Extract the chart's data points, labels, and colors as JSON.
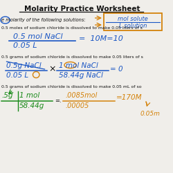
{
  "title": "Molarity Practice Worksheet",
  "bg_color": "#f0eeea",
  "title_color": "#1a1a1a",
  "blue": "#1a56c4",
  "orange": "#d4820a",
  "green": "#1a8a1a",
  "black": "#111111",
  "formula_num": "mol solute",
  "formula_den": "L solution",
  "intro_text": "e molarity of the following solutions:",
  "p1_line": "0.5 moles of sodium chloride is dissolved to make 0.05 liters of s",
  "p1_num": "0.5 mol NaCl",
  "p1_den": "0.05 L",
  "p1_ans": "=  10M=10",
  "p2_line": "0.5 grams of sodium chloride is dissolved to make 0.05 liters of s",
  "p2_num1": "0.5g NaCl",
  "p2_den1": "0.05 L",
  "p2_num2": "1 mol NaCl",
  "p2_den2": "58.44g NaCl",
  "p2_ans": "= 0",
  "p3_line": "0.5 grams of sodium chloride is dissolved to make 0.05 mL of so",
  "p3_lnum1": ".5g",
  "p3_lnum2": "1 mol",
  "p3_lden": "58.44g",
  "p3_rnum": ".0085mol",
  "p3_rden": ".00005",
  "p3_ans1": "=170M",
  "p3_ans2": "0.05m"
}
